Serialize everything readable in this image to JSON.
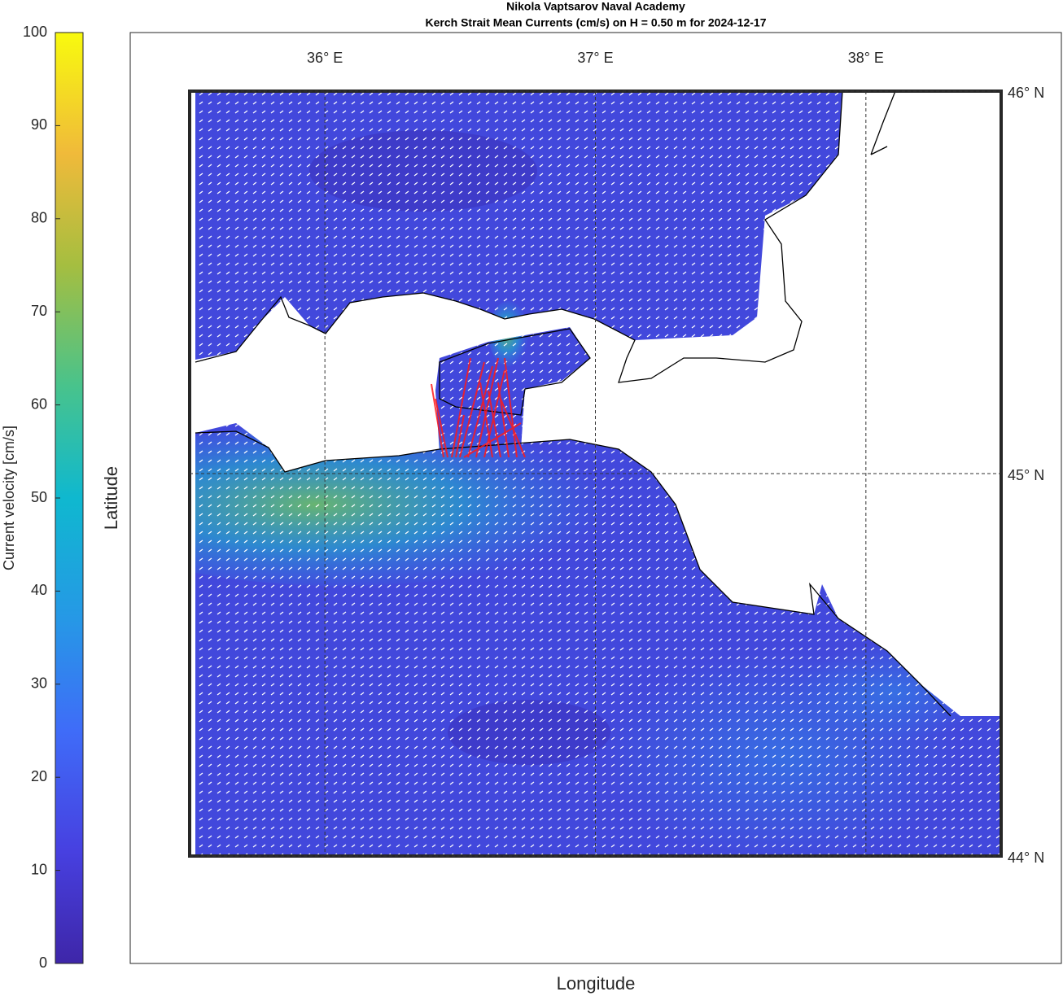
{
  "chart_data": {
    "type": "map",
    "title": [
      "Nikola Vaptsarov Naval Academy",
      "Kerch Strait Mean Currents (cm/s) on H = 0.50 m for 2024-12-17"
    ],
    "xlabel": "Longitude",
    "ylabel": "Latitude",
    "xlim": [
      35.5,
      38.5
    ],
    "ylim": [
      44,
      46
    ],
    "xticks": [
      {
        "value": 36,
        "label": "36° E"
      },
      {
        "value": 37,
        "label": "37° E"
      },
      {
        "value": 38,
        "label": "38° E"
      }
    ],
    "yticks": [
      {
        "value": 44,
        "label": "44° N"
      },
      {
        "value": 45,
        "label": "45° N"
      },
      {
        "value": 46,
        "label": "46° N"
      }
    ],
    "grid": true,
    "colorbar": {
      "label": "Current velocity [cm/s]",
      "lim": [
        0,
        100
      ],
      "ticks": [
        0,
        10,
        20,
        30,
        40,
        50,
        60,
        70,
        80,
        90,
        100
      ]
    }
  }
}
